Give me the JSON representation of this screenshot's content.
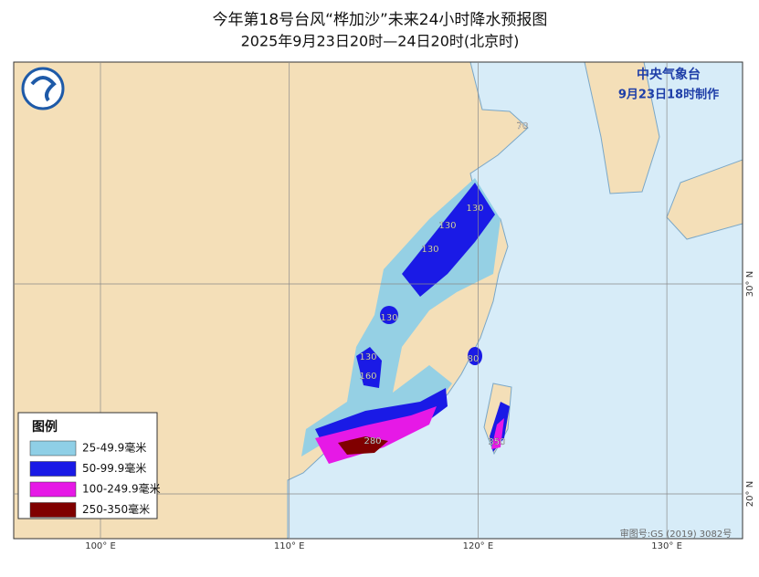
{
  "header": {
    "title": "今年第18号台风“桦加沙”未来24小时降水预报图",
    "subtitle": "2025年9月23日20时—24日20时(北京时)"
  },
  "agency": {
    "name": "中央气象台",
    "issued": "9月23日18时制作"
  },
  "legend": {
    "title": "图例",
    "items": [
      {
        "label": "25-49.9毫米",
        "color": "#8fcfe6"
      },
      {
        "label": "50-99.9毫米",
        "color": "#1a1ae6"
      },
      {
        "label": "100-249.9毫米",
        "color": "#e619e6"
      },
      {
        "label": "250-350毫米",
        "color": "#800000"
      }
    ]
  },
  "grid": {
    "longitudes": [
      {
        "value": 100,
        "label": "100° E"
      },
      {
        "value": 110,
        "label": "110° E"
      },
      {
        "value": 120,
        "label": "120° E"
      },
      {
        "value": 130,
        "label": "130° E"
      }
    ],
    "latitudes": [
      {
        "value": 30,
        "label": "30° N"
      },
      {
        "value": 20,
        "label": "20° N"
      }
    ]
  },
  "station_values": [
    70,
    130,
    130,
    130,
    130,
    130,
    160,
    80,
    280,
    350
  ],
  "credit": "审图号:GS (2019) 3082号"
}
